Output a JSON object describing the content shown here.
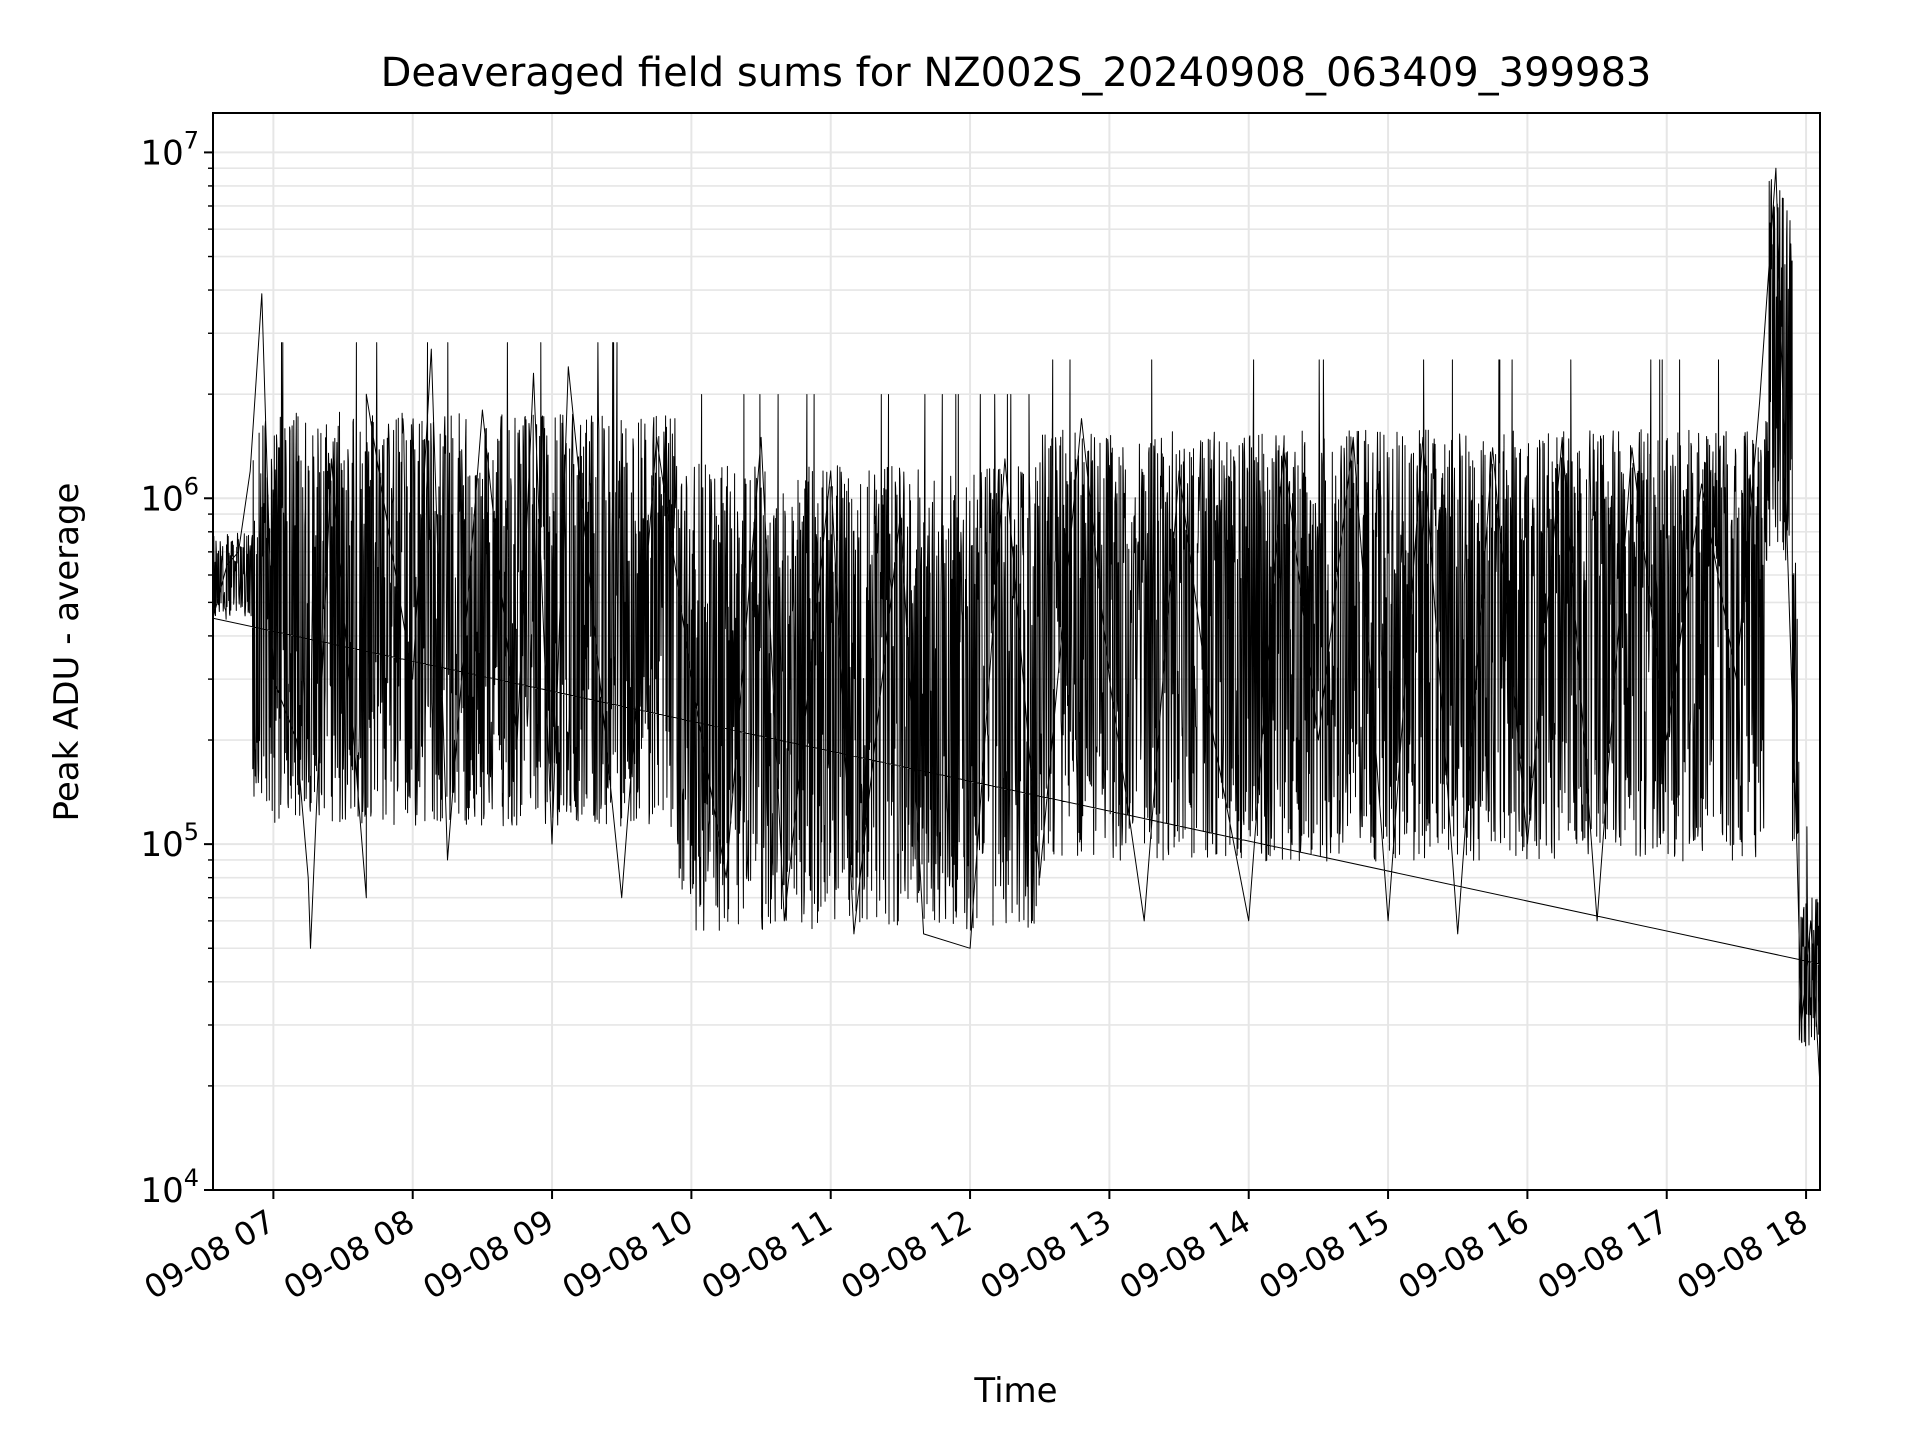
{
  "chart_data": {
    "type": "line",
    "title": "Deaveraged field sums for NZ002S_20240908_063409_399983",
    "xlabel": "Time",
    "ylabel": "Peak ADU - average",
    "yscale": "log",
    "ylim": [
      10000,
      13000000
    ],
    "xlim": [
      "2024-09-08 06:34",
      "2024-09-08 18:06"
    ],
    "grid": true,
    "line_color": "#000000",
    "x_ticks": [
      "09-08 07",
      "09-08 08",
      "09-08 09",
      "09-08 10",
      "09-08 11",
      "09-08 12",
      "09-08 13",
      "09-08 14",
      "09-08 15",
      "09-08 16",
      "09-08 17",
      "09-08 18"
    ],
    "y_ticks": [
      {
        "value": 10000,
        "label_base": "10",
        "label_exp": "4"
      },
      {
        "value": 100000,
        "label_base": "10",
        "label_exp": "5"
      },
      {
        "value": 1000000,
        "label_base": "10",
        "label_exp": "6"
      },
      {
        "value": 10000000,
        "label_base": "10",
        "label_exp": "7"
      }
    ],
    "series": [
      {
        "points": [
          [
            "2024-09-08 06:34",
            450000
          ],
          [
            "2024-09-08 06:40",
            640000
          ],
          [
            "2024-09-08 06:45",
            700000
          ],
          [
            "2024-09-08 06:50",
            1200000
          ],
          [
            "2024-09-08 06:55",
            3900000
          ],
          [
            "2024-09-08 07:00",
            300000
          ],
          [
            "2024-09-08 07:10",
            200000
          ],
          [
            "2024-09-08 07:15",
            80000
          ],
          [
            "2024-09-08 07:16",
            50000
          ],
          [
            "2024-09-08 07:25",
            1300000
          ],
          [
            "2024-09-08 07:40",
            70000
          ],
          [
            "2024-09-08 07:40",
            2000000
          ],
          [
            "2024-09-08 08:00",
            300000
          ],
          [
            "2024-09-08 08:08",
            2700000
          ],
          [
            "2024-09-08 08:15",
            90000
          ],
          [
            "2024-09-08 08:30",
            1800000
          ],
          [
            "2024-09-08 08:45",
            200000
          ],
          [
            "2024-09-08 08:52",
            2300000
          ],
          [
            "2024-09-08 09:00",
            100000
          ],
          [
            "2024-09-08 09:07",
            2400000
          ],
          [
            "2024-09-08 09:30",
            70000
          ],
          [
            "2024-09-08 09:45",
            1500000
          ],
          [
            "2024-09-08 10:00",
            300000
          ],
          [
            "2024-09-08 10:15",
            80000
          ],
          [
            "2024-09-08 10:30",
            1500000
          ],
          [
            "2024-09-08 10:40",
            60000
          ],
          [
            "2024-09-08 11:00",
            1200000
          ],
          [
            "2024-09-08 11:10",
            55000
          ],
          [
            "2024-09-08 11:30",
            900000
          ],
          [
            "2024-09-08 11:40",
            55000
          ],
          [
            "2024-09-08 12:00",
            50000
          ],
          [
            "2024-09-08 12:15",
            1300000
          ],
          [
            "2024-09-08 12:30",
            80000
          ],
          [
            "2024-09-08 12:48",
            1700000
          ],
          [
            "2024-09-08 13:00",
            300000
          ],
          [
            "2024-09-08 13:15",
            60000
          ],
          [
            "2024-09-08 13:30",
            1200000
          ],
          [
            "2024-09-08 13:45",
            200000
          ],
          [
            "2024-09-08 14:00",
            60000
          ],
          [
            "2024-09-08 14:15",
            1400000
          ],
          [
            "2024-09-08 14:30",
            200000
          ],
          [
            "2024-09-08 14:45",
            1500000
          ],
          [
            "2024-09-08 15:00",
            60000
          ],
          [
            "2024-09-08 15:15",
            1500000
          ],
          [
            "2024-09-08 15:30",
            55000
          ],
          [
            "2024-09-08 15:45",
            1400000
          ],
          [
            "2024-09-08 16:00",
            100000
          ],
          [
            "2024-09-08 16:15",
            1500000
          ],
          [
            "2024-09-08 16:30",
            60000
          ],
          [
            "2024-09-08 16:45",
            1400000
          ],
          [
            "2024-09-08 17:00",
            200000
          ],
          [
            "2024-09-08 17:15",
            1100000
          ],
          [
            "2024-09-08 17:30",
            300000
          ],
          [
            "2024-09-08 17:40",
            1900000
          ],
          [
            "2024-09-08 17:47",
            9000000
          ],
          [
            "2024-09-08 17:52",
            700000
          ],
          [
            "2024-09-08 17:56",
            100000
          ],
          [
            "2024-09-08 17:58",
            30000
          ],
          [
            "2024-09-08 18:02",
            60000
          ],
          [
            "2024-09-08 18:06",
            20000
          ]
        ]
      }
    ]
  }
}
